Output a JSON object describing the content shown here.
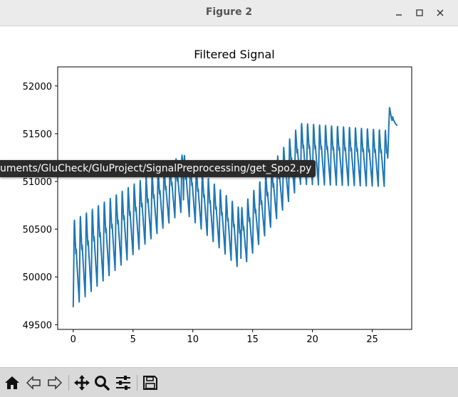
{
  "window": {
    "title": "Figure 2"
  },
  "toolbar": {
    "buttons": [
      {
        "name": "home-icon"
      },
      {
        "name": "back-icon"
      },
      {
        "name": "forward-icon"
      },
      {
        "name": "pan-icon"
      },
      {
        "name": "zoom-icon"
      },
      {
        "name": "configure-subplots-icon"
      },
      {
        "name": "save-icon"
      }
    ]
  },
  "tooltip": {
    "text": "uments/GluCheck/GluProject/SignalPreprocessing/get_Spo2.py"
  },
  "chart_data": {
    "type": "line",
    "title": "Filtered Signal",
    "xlabel": "",
    "ylabel": "",
    "xlim": [
      -1.3,
      28.3
    ],
    "ylim": [
      49450,
      52200
    ],
    "xticks": [
      0,
      5,
      10,
      15,
      20,
      25
    ],
    "yticks": [
      49500,
      50000,
      50500,
      51000,
      51500,
      52000
    ],
    "line_color": "#1f77b4",
    "grid": false,
    "segments": [
      {
        "x_start": 0.0,
        "x_end": 9.2,
        "period": 0.5,
        "base_start": 50150,
        "base_end": 51000,
        "amp_start": 850,
        "amp_end": 550
      },
      {
        "x_start": 9.2,
        "x_end": 14.0,
        "period": 0.5,
        "base_start": 51000,
        "base_end": 50400,
        "amp_start": 550,
        "amp_end": 600
      },
      {
        "x_start": 14.0,
        "x_end": 19.0,
        "period": 0.5,
        "base_start": 50400,
        "base_end": 51300,
        "amp_start": 600,
        "amp_end": 600
      },
      {
        "x_start": 19.0,
        "x_end": 26.3,
        "period": 0.5,
        "base_start": 51300,
        "base_end": 51250,
        "amp_start": 600,
        "amp_end": 550
      },
      {
        "x_start": 26.3,
        "x_end": 27.1,
        "period": 0.8,
        "base_start": 51500,
        "base_end": 51750,
        "amp_start": 450,
        "amp_end": 300
      }
    ]
  }
}
